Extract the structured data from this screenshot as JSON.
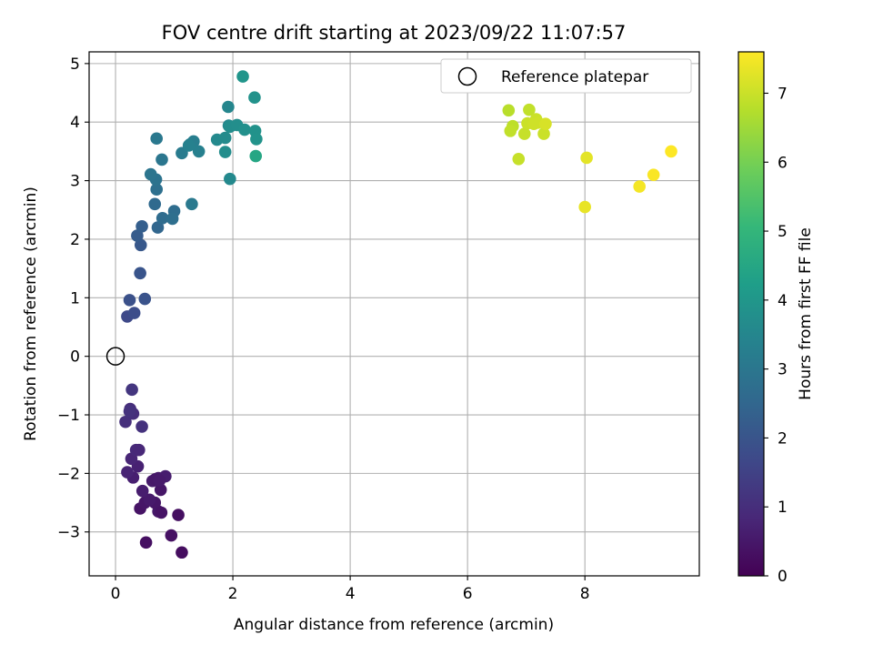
{
  "chart_data": {
    "type": "scatter",
    "title": "FOV centre drift starting at 2023/09/22 11:07:57",
    "xlabel": "Angular distance from reference (arcmin)",
    "ylabel": "Rotation from reference (arcmin)",
    "xlim": [
      -0.45,
      9.95
    ],
    "ylim": [
      -3.75,
      5.2
    ],
    "xticks": [
      0,
      2,
      4,
      6,
      8
    ],
    "yticks": [
      -3,
      -2,
      -1,
      0,
      1,
      2,
      3,
      4,
      5
    ],
    "xtick_labels": [
      "0",
      "2",
      "4",
      "6",
      "8"
    ],
    "ytick_labels": [
      "−3",
      "−2",
      "−1",
      "0",
      "1",
      "2",
      "3",
      "4",
      "5"
    ],
    "grid": true,
    "legend": {
      "placement": "top-right",
      "entries": [
        "Reference platepar"
      ]
    },
    "reference_point": {
      "x": 0,
      "y": 0,
      "label": "Reference platepar"
    },
    "colorbar": {
      "label": "Hours from first FF file",
      "colormap": "viridis",
      "range": [
        0,
        7.6
      ],
      "ticks": [
        0,
        1,
        2,
        3,
        4,
        5,
        6,
        7
      ],
      "tick_labels": [
        "0",
        "1",
        "2",
        "3",
        "4",
        "5",
        "6",
        "7"
      ]
    },
    "colormap_stops": [
      "#440154",
      "#482878",
      "#3e4989",
      "#31688e",
      "#26828e",
      "#1f9e89",
      "#35b779",
      "#6ece58",
      "#b5de2b",
      "#fde725"
    ],
    "series": [
      {
        "x": [
          1.13,
          0.52,
          0.95,
          0.42,
          0.5,
          0.73,
          1.07,
          0.67,
          0.78,
          0.58,
          0.46,
          0.73,
          0.85,
          0.63,
          0.77,
          0.3,
          0.38,
          0.2,
          0.68,
          0.75,
          0.27,
          0.35,
          0.4,
          0.25,
          0.45,
          0.17,
          0.3,
          0.24,
          0.28
        ],
        "y": [
          -3.35,
          -3.18,
          -3.06,
          -2.6,
          -2.5,
          -2.65,
          -2.71,
          -2.5,
          -2.67,
          -2.45,
          -2.3,
          -2.08,
          -2.05,
          -2.13,
          -2.28,
          -2.07,
          -1.88,
          -1.98,
          -2.1,
          -2.12,
          -1.75,
          -1.6,
          -1.6,
          -0.9,
          -1.2,
          -1.12,
          -0.98,
          -0.94,
          -0.57
        ],
        "colors": [
          0.25,
          0.3,
          0.35,
          0.4,
          0.45,
          0.5,
          0.3,
          0.45,
          0.4,
          0.55,
          0.6,
          0.5,
          0.6,
          0.55,
          0.45,
          0.65,
          0.7,
          0.75,
          0.5,
          0.55,
          0.8,
          0.9,
          0.85,
          1.0,
          1.1,
          1.05,
          1.0,
          1.1,
          1.2
        ]
      },
      {
        "x": [
          0.2,
          0.32,
          0.24,
          0.5,
          0.42,
          0.43,
          0.37,
          0.45,
          0.72,
          0.67,
          0.8,
          1.0,
          0.97,
          0.7,
          0.69,
          0.6,
          0.79,
          0.7,
          1.3,
          1.13,
          1.27,
          1.33,
          1.42,
          1.25
        ],
        "y": [
          0.68,
          0.74,
          0.96,
          0.98,
          1.42,
          1.9,
          2.06,
          2.22,
          2.2,
          2.6,
          2.36,
          2.48,
          2.35,
          2.85,
          3.02,
          3.11,
          3.36,
          3.72,
          2.6,
          3.47,
          3.62,
          3.67,
          3.5,
          3.6
        ],
        "colors": [
          1.7,
          1.8,
          1.9,
          1.95,
          2.0,
          2.1,
          2.2,
          2.3,
          2.5,
          2.6,
          2.65,
          2.7,
          2.75,
          2.8,
          2.9,
          2.95,
          3.0,
          3.05,
          3.1,
          3.15,
          3.2,
          3.25,
          3.3,
          3.35
        ]
      },
      {
        "x": [
          1.92,
          1.93,
          1.73,
          1.87,
          1.95,
          2.07,
          2.2,
          2.38,
          2.4,
          2.17,
          1.95,
          1.87,
          2.39,
          2.37
        ],
        "y": [
          4.26,
          3.94,
          3.7,
          3.73,
          3.92,
          3.95,
          3.87,
          3.85,
          3.71,
          4.78,
          3.03,
          3.49,
          3.42,
          4.42
        ],
        "colors": [
          3.5,
          3.55,
          3.6,
          3.65,
          3.7,
          3.75,
          3.8,
          3.85,
          3.9,
          3.95,
          3.6,
          3.7,
          4.5,
          3.85
        ]
      },
      {
        "x": [
          6.7,
          6.77,
          6.73,
          7.05,
          6.87,
          7.17,
          7.3,
          6.97,
          7.02,
          7.2,
          7.13,
          7.33,
          8.03,
          8.0,
          8.93,
          9.17,
          9.47
        ],
        "y": [
          4.2,
          3.93,
          3.85,
          4.21,
          3.37,
          4.05,
          3.8,
          3.8,
          3.98,
          3.99,
          3.97,
          3.97,
          3.39,
          2.55,
          2.9,
          3.1,
          3.5
        ],
        "colors": [
          6.8,
          6.85,
          6.9,
          6.9,
          6.95,
          7.0,
          7.0,
          6.95,
          7.0,
          7.05,
          7.05,
          7.15,
          7.3,
          7.35,
          7.5,
          7.55,
          7.6
        ]
      }
    ]
  }
}
